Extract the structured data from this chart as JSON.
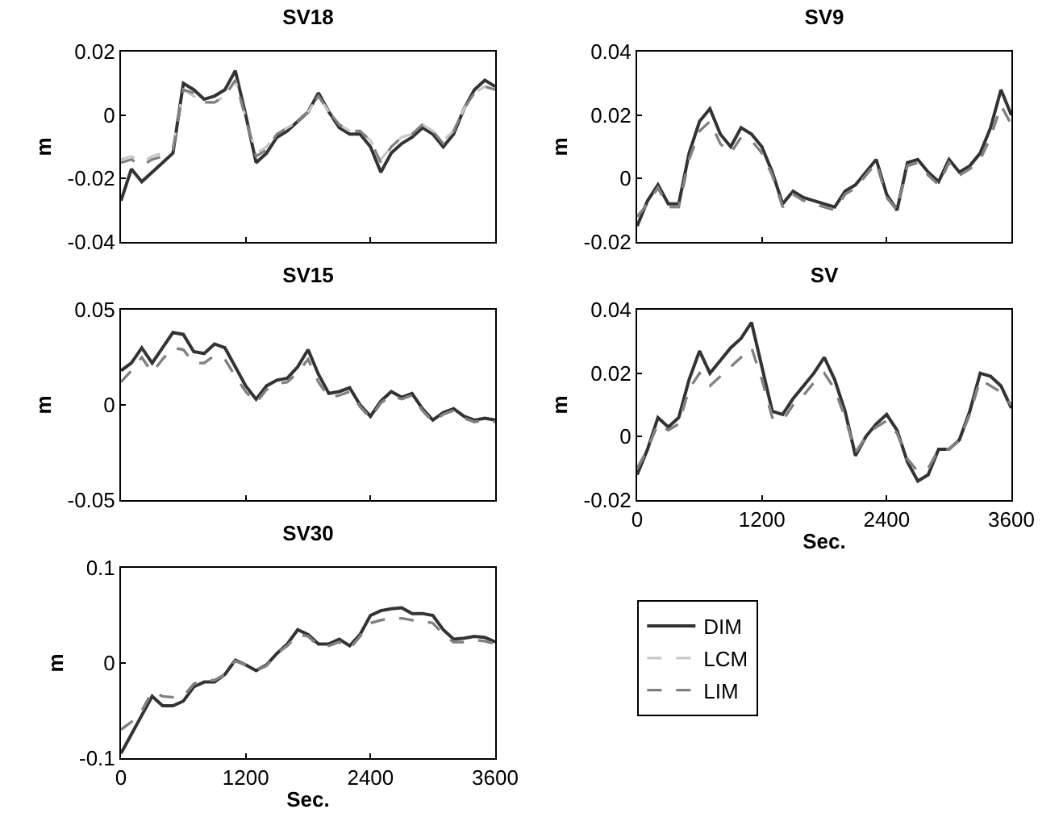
{
  "chart_data": [
    {
      "type": "line",
      "title": "SV18",
      "ylabel": "m",
      "x": [
        0,
        100,
        200,
        300,
        400,
        500,
        600,
        700,
        800,
        900,
        1000,
        1100,
        1200,
        1300,
        1400,
        1500,
        1600,
        1700,
        1800,
        1900,
        2000,
        2100,
        2200,
        2300,
        2400,
        2500,
        2600,
        2700,
        2800,
        2900,
        3000,
        3100,
        3200,
        3300,
        3400,
        3500,
        3600
      ],
      "xlim": [
        0,
        3600
      ],
      "xticks": [
        {
          "value": 0,
          "label": null
        },
        {
          "value": 1200,
          "label": null
        },
        {
          "value": 2400,
          "label": null
        },
        {
          "value": 3600,
          "label": null
        }
      ],
      "ylim": [
        -0.04,
        0.02
      ],
      "yticks": [
        -0.04,
        -0.02,
        0,
        0.02
      ],
      "tick_labels": "y",
      "series": [
        {
          "color": "#333333",
          "line_style": "solid",
          "values": [
            -0.027,
            -0.017,
            -0.021,
            -0.018,
            -0.015,
            -0.012,
            0.01,
            0.008,
            0.005,
            0.006,
            0.008,
            0.014,
            0.0,
            -0.015,
            -0.012,
            -0.007,
            -0.005,
            -0.002,
            0.001,
            0.007,
            0.001,
            -0.004,
            -0.006,
            -0.006,
            -0.01,
            -0.018,
            -0.012,
            -0.009,
            -0.007,
            -0.004,
            -0.006,
            -0.01,
            -0.006,
            0.002,
            0.008,
            0.011,
            0.009
          ]
        },
        {
          "color": "#c8c8c8",
          "line_style": "dashed",
          "values": [
            -0.014,
            -0.013,
            -0.015,
            -0.013,
            -0.012,
            -0.01,
            0.008,
            0.006,
            0.004,
            0.004,
            0.006,
            0.011,
            -0.001,
            -0.012,
            -0.01,
            -0.006,
            -0.004,
            -0.002,
            0.001,
            0.006,
            0.001,
            -0.003,
            -0.005,
            -0.005,
            -0.008,
            -0.014,
            -0.01,
            -0.007,
            -0.006,
            -0.003,
            -0.005,
            -0.008,
            -0.005,
            0.002,
            0.007,
            0.009,
            0.008
          ]
        },
        {
          "color": "#808080",
          "line_style": "dashed",
          "values": [
            -0.015,
            -0.014,
            -0.016,
            -0.014,
            -0.013,
            -0.011,
            0.008,
            0.007,
            0.004,
            0.004,
            0.006,
            0.011,
            -0.001,
            -0.013,
            -0.011,
            -0.006,
            -0.004,
            -0.002,
            0.001,
            0.006,
            0.001,
            -0.003,
            -0.005,
            -0.005,
            -0.008,
            -0.015,
            -0.01,
            -0.007,
            -0.006,
            -0.003,
            -0.005,
            -0.009,
            -0.005,
            0.002,
            0.007,
            0.009,
            0.008
          ]
        }
      ]
    },
    {
      "type": "line",
      "title": "SV9",
      "ylabel": "m",
      "x": [
        0,
        100,
        200,
        300,
        400,
        500,
        600,
        700,
        800,
        900,
        1000,
        1100,
        1200,
        1300,
        1400,
        1500,
        1600,
        1700,
        1800,
        1900,
        2000,
        2100,
        2200,
        2300,
        2400,
        2500,
        2600,
        2700,
        2800,
        2900,
        3000,
        3100,
        3200,
        3300,
        3400,
        3500,
        3600
      ],
      "xlim": [
        0,
        3600
      ],
      "xticks": [
        {
          "value": 0,
          "label": null
        },
        {
          "value": 1200,
          "label": null
        },
        {
          "value": 2400,
          "label": null
        },
        {
          "value": 3600,
          "label": null
        }
      ],
      "ylim": [
        -0.02,
        0.04
      ],
      "yticks": [
        -0.02,
        0,
        0.02,
        0.04
      ],
      "tick_labels": "y",
      "series": [
        {
          "color": "#333333",
          "line_style": "solid",
          "values": [
            -0.015,
            -0.007,
            -0.002,
            -0.008,
            -0.008,
            0.008,
            0.018,
            0.022,
            0.014,
            0.01,
            0.016,
            0.014,
            0.01,
            0.002,
            -0.008,
            -0.004,
            -0.006,
            -0.007,
            -0.008,
            -0.009,
            -0.004,
            -0.002,
            0.002,
            0.006,
            -0.005,
            -0.01,
            0.005,
            0.006,
            0.002,
            -0.001,
            0.006,
            0.002,
            0.004,
            0.008,
            0.016,
            0.028,
            0.02
          ]
        },
        {
          "color": "#c8c8c8",
          "line_style": "dashed",
          "values": [
            -0.012,
            -0.008,
            -0.003,
            -0.009,
            -0.009,
            0.006,
            0.015,
            0.018,
            0.011,
            0.008,
            0.013,
            0.012,
            0.008,
            0.001,
            -0.009,
            -0.005,
            -0.007,
            -0.008,
            -0.009,
            -0.01,
            -0.005,
            -0.003,
            0.001,
            0.005,
            -0.006,
            -0.01,
            0.004,
            0.005,
            0.001,
            -0.002,
            0.005,
            0.001,
            0.003,
            0.006,
            0.013,
            0.023,
            0.017
          ]
        },
        {
          "color": "#808080",
          "line_style": "dashed",
          "values": [
            -0.012,
            -0.008,
            -0.003,
            -0.009,
            -0.009,
            0.006,
            0.015,
            0.018,
            0.011,
            0.008,
            0.013,
            0.012,
            0.008,
            0.001,
            -0.009,
            -0.005,
            -0.007,
            -0.008,
            -0.009,
            -0.01,
            -0.005,
            -0.003,
            0.001,
            0.005,
            -0.006,
            -0.01,
            0.004,
            0.005,
            0.001,
            -0.002,
            0.005,
            0.001,
            0.003,
            0.006,
            0.013,
            0.023,
            0.017
          ]
        }
      ]
    },
    {
      "type": "line",
      "title": "SV15",
      "ylabel": "m",
      "x": [
        0,
        100,
        200,
        300,
        400,
        500,
        600,
        700,
        800,
        900,
        1000,
        1100,
        1200,
        1300,
        1400,
        1500,
        1600,
        1700,
        1800,
        1900,
        2000,
        2100,
        2200,
        2300,
        2400,
        2500,
        2600,
        2700,
        2800,
        2900,
        3000,
        3100,
        3200,
        3300,
        3400,
        3500,
        3600
      ],
      "xlim": [
        0,
        3600
      ],
      "xticks": [
        {
          "value": 0,
          "label": null
        },
        {
          "value": 1200,
          "label": null
        },
        {
          "value": 2400,
          "label": null
        },
        {
          "value": 3600,
          "label": null
        }
      ],
      "ylim": [
        -0.05,
        0.05
      ],
      "yticks": [
        -0.05,
        0,
        0.05
      ],
      "tick_labels": "y",
      "series": [
        {
          "color": "#333333",
          "line_style": "solid",
          "values": [
            0.018,
            0.022,
            0.03,
            0.022,
            0.03,
            0.038,
            0.037,
            0.028,
            0.027,
            0.032,
            0.03,
            0.02,
            0.01,
            0.003,
            0.01,
            0.013,
            0.014,
            0.02,
            0.029,
            0.016,
            0.006,
            0.007,
            0.009,
            0.0,
            -0.006,
            0.002,
            0.007,
            0.004,
            0.006,
            -0.002,
            -0.008,
            -0.004,
            -0.002,
            -0.006,
            -0.008,
            -0.007,
            -0.008
          ]
        },
        {
          "color": "#c8c8c8",
          "line_style": "dashed",
          "values": [
            0.012,
            0.018,
            0.025,
            0.017,
            0.024,
            0.03,
            0.029,
            0.022,
            0.022,
            0.026,
            0.024,
            0.015,
            0.007,
            0.001,
            0.008,
            0.011,
            0.012,
            0.017,
            0.024,
            0.012,
            0.004,
            0.005,
            0.007,
            -0.001,
            -0.007,
            0.001,
            0.005,
            0.003,
            0.005,
            -0.003,
            -0.009,
            -0.005,
            -0.003,
            -0.007,
            -0.009,
            -0.008,
            -0.009
          ]
        },
        {
          "color": "#808080",
          "line_style": "dashed",
          "values": [
            0.012,
            0.018,
            0.025,
            0.017,
            0.024,
            0.03,
            0.029,
            0.022,
            0.022,
            0.026,
            0.024,
            0.015,
            0.007,
            0.001,
            0.008,
            0.011,
            0.012,
            0.017,
            0.024,
            0.012,
            0.004,
            0.005,
            0.007,
            -0.001,
            -0.007,
            0.001,
            0.005,
            0.003,
            0.005,
            -0.003,
            -0.009,
            -0.005,
            -0.003,
            -0.007,
            -0.009,
            -0.008,
            -0.009
          ]
        }
      ]
    },
    {
      "type": "line",
      "title": "SV",
      "xlabel": "Sec.",
      "ylabel": "m",
      "x": [
        0,
        100,
        200,
        300,
        400,
        500,
        600,
        700,
        800,
        900,
        1000,
        1100,
        1200,
        1300,
        1400,
        1500,
        1600,
        1700,
        1800,
        1900,
        2000,
        2100,
        2200,
        2300,
        2400,
        2500,
        2600,
        2700,
        2800,
        2900,
        3000,
        3100,
        3200,
        3300,
        3400,
        3500,
        3600
      ],
      "xlim": [
        0,
        3600
      ],
      "xticks": [
        0,
        1200,
        2400,
        3600
      ],
      "ylim": [
        -0.02,
        0.04
      ],
      "yticks": [
        -0.02,
        0,
        0.02,
        0.04
      ],
      "series": [
        {
          "color": "#333333",
          "line_style": "solid",
          "values": [
            -0.012,
            -0.004,
            0.006,
            0.003,
            0.006,
            0.018,
            0.027,
            0.02,
            0.024,
            0.028,
            0.031,
            0.036,
            0.022,
            0.008,
            0.007,
            0.012,
            0.016,
            0.02,
            0.025,
            0.018,
            0.008,
            -0.006,
            0.0,
            0.004,
            0.007,
            0.002,
            -0.008,
            -0.014,
            -0.012,
            -0.004,
            -0.004,
            -0.001,
            0.008,
            0.02,
            0.019,
            0.016,
            0.009
          ]
        },
        {
          "color": "#c8c8c8",
          "line_style": "dashed",
          "values": [
            -0.01,
            -0.004,
            0.004,
            0.002,
            0.004,
            0.015,
            0.02,
            0.016,
            0.019,
            0.022,
            0.025,
            0.028,
            0.018,
            0.006,
            0.005,
            0.01,
            0.013,
            0.017,
            0.02,
            0.015,
            0.006,
            -0.005,
            0.0,
            0.003,
            0.005,
            0.001,
            -0.007,
            -0.011,
            -0.01,
            -0.004,
            -0.004,
            -0.001,
            0.007,
            0.018,
            0.016,
            0.014,
            0.01
          ]
        },
        {
          "color": "#808080",
          "line_style": "dashed",
          "values": [
            -0.01,
            -0.004,
            0.004,
            0.002,
            0.004,
            0.015,
            0.02,
            0.016,
            0.019,
            0.022,
            0.025,
            0.028,
            0.018,
            0.006,
            0.005,
            0.01,
            0.013,
            0.017,
            0.02,
            0.015,
            0.006,
            -0.005,
            0.0,
            0.003,
            0.005,
            0.001,
            -0.007,
            -0.011,
            -0.01,
            -0.004,
            -0.004,
            -0.001,
            0.007,
            0.018,
            0.016,
            0.014,
            0.01
          ]
        }
      ]
    },
    {
      "type": "line",
      "title": "SV30",
      "xlabel": "Sec.",
      "ylabel": "m",
      "x": [
        0,
        100,
        200,
        300,
        400,
        500,
        600,
        700,
        800,
        900,
        1000,
        1100,
        1200,
        1300,
        1400,
        1500,
        1600,
        1700,
        1800,
        1900,
        2000,
        2100,
        2200,
        2300,
        2400,
        2500,
        2600,
        2700,
        2800,
        2900,
        3000,
        3100,
        3200,
        3300,
        3400,
        3500,
        3600
      ],
      "xlim": [
        0,
        3600
      ],
      "xticks": [
        0,
        1200,
        2400,
        3600
      ],
      "ylim": [
        -0.1,
        0.1
      ],
      "yticks": [
        -0.1,
        0,
        0.1
      ],
      "legend": "right",
      "series": [
        {
          "name": "DIM",
          "color": "#333333",
          "line_style": "solid",
          "values": [
            -0.095,
            -0.075,
            -0.055,
            -0.035,
            -0.045,
            -0.045,
            -0.04,
            -0.025,
            -0.02,
            -0.02,
            -0.012,
            0.003,
            -0.002,
            -0.008,
            -0.002,
            0.01,
            0.02,
            0.035,
            0.03,
            0.02,
            0.02,
            0.025,
            0.018,
            0.03,
            0.05,
            0.055,
            0.057,
            0.058,
            0.052,
            0.052,
            0.05,
            0.035,
            0.025,
            0.026,
            0.028,
            0.027,
            0.022
          ]
        },
        {
          "name": "LCM",
          "color": "#c8c8c8",
          "line_style": "dashed",
          "values": [
            -0.07,
            -0.062,
            -0.05,
            -0.03,
            -0.035,
            -0.036,
            -0.035,
            -0.022,
            -0.018,
            -0.018,
            -0.012,
            0.002,
            -0.002,
            -0.008,
            -0.003,
            0.01,
            0.018,
            0.03,
            0.028,
            0.018,
            0.018,
            0.022,
            0.015,
            0.028,
            0.042,
            0.045,
            0.047,
            0.047,
            0.045,
            0.044,
            0.042,
            0.03,
            0.022,
            0.022,
            0.024,
            0.023,
            0.02
          ]
        },
        {
          "name": "LIM",
          "color": "#808080",
          "line_style": "dashed",
          "values": [
            -0.07,
            -0.062,
            -0.05,
            -0.03,
            -0.035,
            -0.036,
            -0.035,
            -0.022,
            -0.018,
            -0.018,
            -0.012,
            0.002,
            -0.002,
            -0.008,
            -0.003,
            0.01,
            0.018,
            0.03,
            0.028,
            0.018,
            0.018,
            0.022,
            0.015,
            0.028,
            0.042,
            0.045,
            0.047,
            0.047,
            0.045,
            0.044,
            0.042,
            0.03,
            0.022,
            0.022,
            0.024,
            0.023,
            0.02
          ]
        }
      ]
    }
  ]
}
